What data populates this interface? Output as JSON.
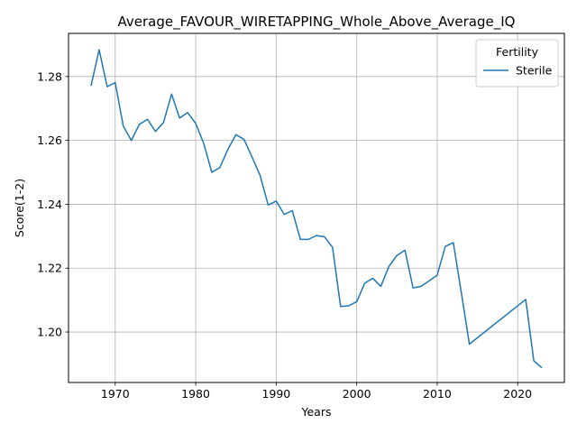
{
  "chart_data": {
    "type": "line",
    "title": "Average_FAVOUR_WIRETAPPING_Whole_Above_Average_IQ",
    "xlabel": "Years",
    "ylabel": "Score(1-2)",
    "xlim": [
      1964.2,
      2025.8
    ],
    "ylim": [
      1.1842,
      1.2935
    ],
    "xticks": [
      1970,
      1980,
      1990,
      2000,
      2010,
      2020
    ],
    "yticks": [
      1.2,
      1.22,
      1.24,
      1.26,
      1.28
    ],
    "ytick_labels": [
      "1.20",
      "1.22",
      "1.24",
      "1.26",
      "1.28"
    ],
    "grid": true,
    "legend": {
      "title": "Fertility",
      "position": "top-right"
    },
    "series": [
      {
        "name": "Sterile",
        "color": "#1f77b4",
        "x": [
          1967,
          1968,
          1969,
          1970,
          1971,
          1972,
          1973,
          1974,
          1975,
          1976,
          1977,
          1978,
          1979,
          1980,
          1981,
          1982,
          1983,
          1984,
          1985,
          1986,
          1987,
          1988,
          1989,
          1990,
          1991,
          1992,
          1993,
          1994,
          1995,
          1996,
          1997,
          1998,
          1999,
          2000,
          2001,
          2002,
          2003,
          2004,
          2005,
          2006,
          2007,
          2008,
          2009,
          2010,
          2011,
          2012,
          2013,
          2014,
          2021,
          2022,
          2023
        ],
        "y": [
          1.2771,
          1.2884,
          1.2768,
          1.2781,
          1.2645,
          1.26,
          1.265,
          1.2666,
          1.2628,
          1.2656,
          1.2745,
          1.267,
          1.2687,
          1.2653,
          1.259,
          1.25,
          1.2515,
          1.2572,
          1.2618,
          1.2603,
          1.2548,
          1.249,
          1.2398,
          1.241,
          1.2368,
          1.238,
          1.229,
          1.229,
          1.2302,
          1.2298,
          1.2265,
          1.208,
          1.2082,
          1.2095,
          1.2153,
          1.2168,
          1.2143,
          1.2205,
          1.224,
          1.2256,
          1.2138,
          1.2143,
          1.216,
          1.2178,
          1.2268,
          1.228,
          1.2123,
          1.1962,
          1.2102,
          1.191,
          1.1888
        ]
      }
    ]
  }
}
